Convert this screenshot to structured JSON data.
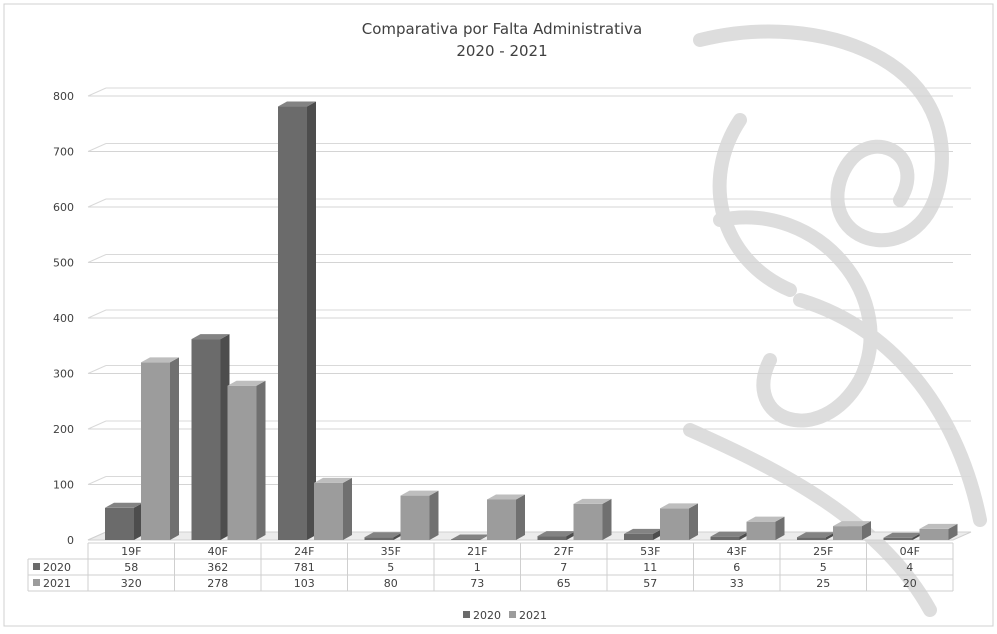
{
  "chart_data": {
    "type": "bar",
    "title": "Comparativa por Falta Administrativa",
    "subtitle": "2020 - 2021",
    "categories": [
      "19F",
      "40F",
      "24F",
      "35F",
      "21F",
      "27F",
      "53F",
      "43F",
      "25F",
      "04F"
    ],
    "series": [
      {
        "name": "2020",
        "values": [
          58,
          362,
          781,
          5,
          1,
          7,
          11,
          6,
          5,
          4
        ],
        "color": "#6b6b6b"
      },
      {
        "name": "2021",
        "values": [
          320,
          278,
          103,
          80,
          73,
          65,
          57,
          33,
          25,
          20
        ],
        "color": "#9c9c9c"
      }
    ],
    "ylim": [
      0,
      800
    ],
    "yticks": [
      0,
      100,
      200,
      300,
      400,
      500,
      600,
      700,
      800
    ],
    "grid": true,
    "legend": "bottom",
    "data_table": true,
    "style": "3d-clustered-column"
  }
}
